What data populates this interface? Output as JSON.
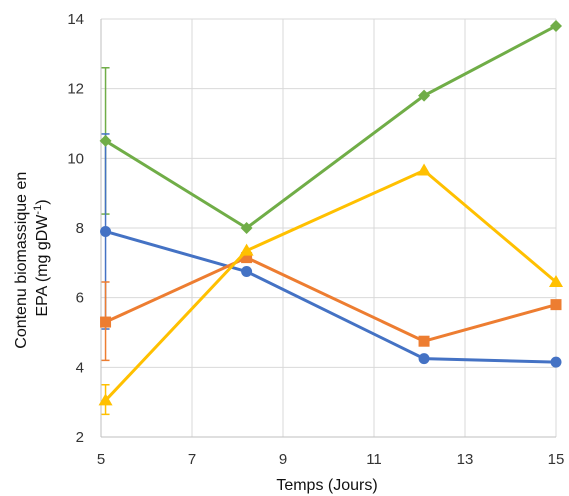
{
  "chart_data": {
    "type": "line",
    "xlabel": "Temps (Jours)",
    "ylabel_line1": "Contenu biomassique en",
    "ylabel_line2_prefix": "EPA (mg gDW",
    "ylabel_superscript": "-1",
    "ylabel_line2_suffix": ")",
    "xlim": [
      5,
      15
    ],
    "ylim": [
      2,
      14
    ],
    "x_ticks": [
      5,
      7,
      9,
      11,
      13,
      15
    ],
    "y_ticks": [
      2,
      4,
      6,
      8,
      10,
      12,
      14
    ],
    "grid": true,
    "legend": "none",
    "series": [
      {
        "color": "#70ad47",
        "marker": "diamond",
        "points": [
          [
            5.1,
            10.5
          ],
          [
            8.2,
            8.0
          ],
          [
            12.1,
            11.8
          ],
          [
            15.0,
            13.8
          ]
        ],
        "error_bars": [
          {
            "x": 5.1,
            "low": 8.4,
            "high": 12.6
          }
        ]
      },
      {
        "color": "#4472c4",
        "marker": "circle",
        "points": [
          [
            5.1,
            7.9
          ],
          [
            8.2,
            6.75
          ],
          [
            12.1,
            4.25
          ],
          [
            15.0,
            4.15
          ]
        ],
        "error_bars": [
          {
            "x": 5.1,
            "low": 5.1,
            "high": 10.7
          }
        ]
      },
      {
        "color": "#ed7d31",
        "marker": "square",
        "points": [
          [
            5.1,
            5.3
          ],
          [
            8.2,
            7.15
          ],
          [
            12.1,
            4.75
          ],
          [
            15.0,
            5.8
          ]
        ],
        "error_bars": [
          {
            "x": 5.1,
            "low": 4.2,
            "high": 6.45
          }
        ]
      },
      {
        "color": "#ffc000",
        "marker": "triangle",
        "points": [
          [
            5.1,
            3.05
          ],
          [
            8.2,
            7.35
          ],
          [
            12.1,
            9.65
          ],
          [
            15.0,
            6.45
          ]
        ],
        "error_bars": [
          {
            "x": 5.1,
            "low": 2.65,
            "high": 3.5
          }
        ]
      }
    ]
  }
}
